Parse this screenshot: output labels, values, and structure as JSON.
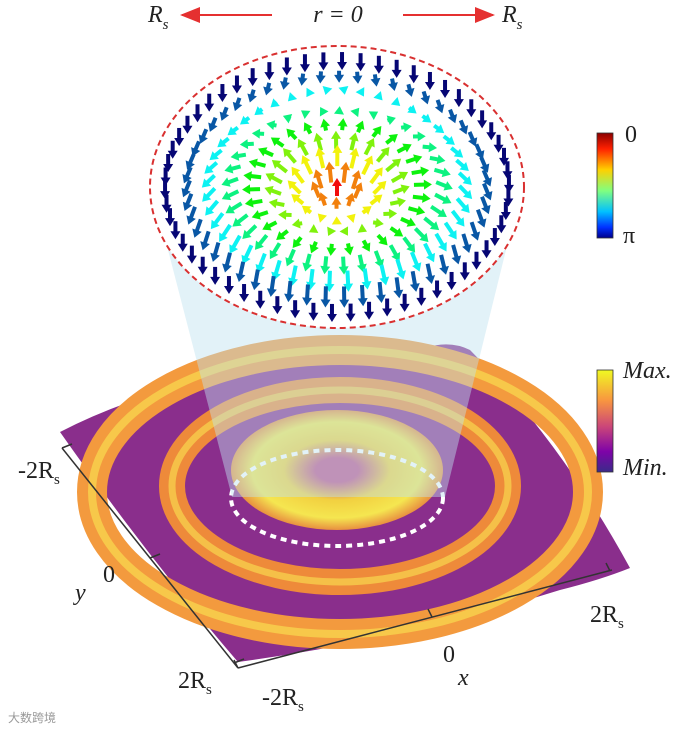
{
  "header": {
    "left": {
      "symbol": "R",
      "subscript": "s"
    },
    "center": "r = 0",
    "right": {
      "symbol": "R",
      "subscript": "s"
    }
  },
  "colorbars": [
    {
      "top": "0",
      "bottom": "π"
    },
    {
      "top": "Max.",
      "bottom": "Min."
    }
  ],
  "y_axis": {
    "label": "y",
    "ticks": [
      {
        "main": "-2R",
        "sub": "s"
      },
      "0",
      {
        "main": "2R",
        "sub": "s"
      }
    ]
  },
  "x_axis": {
    "label": "x",
    "ticks": [
      {
        "main": "-2R",
        "sub": "s"
      },
      "0",
      {
        "main": "2R",
        "sub": "s"
      }
    ]
  },
  "watermark": "大数跨境"
}
